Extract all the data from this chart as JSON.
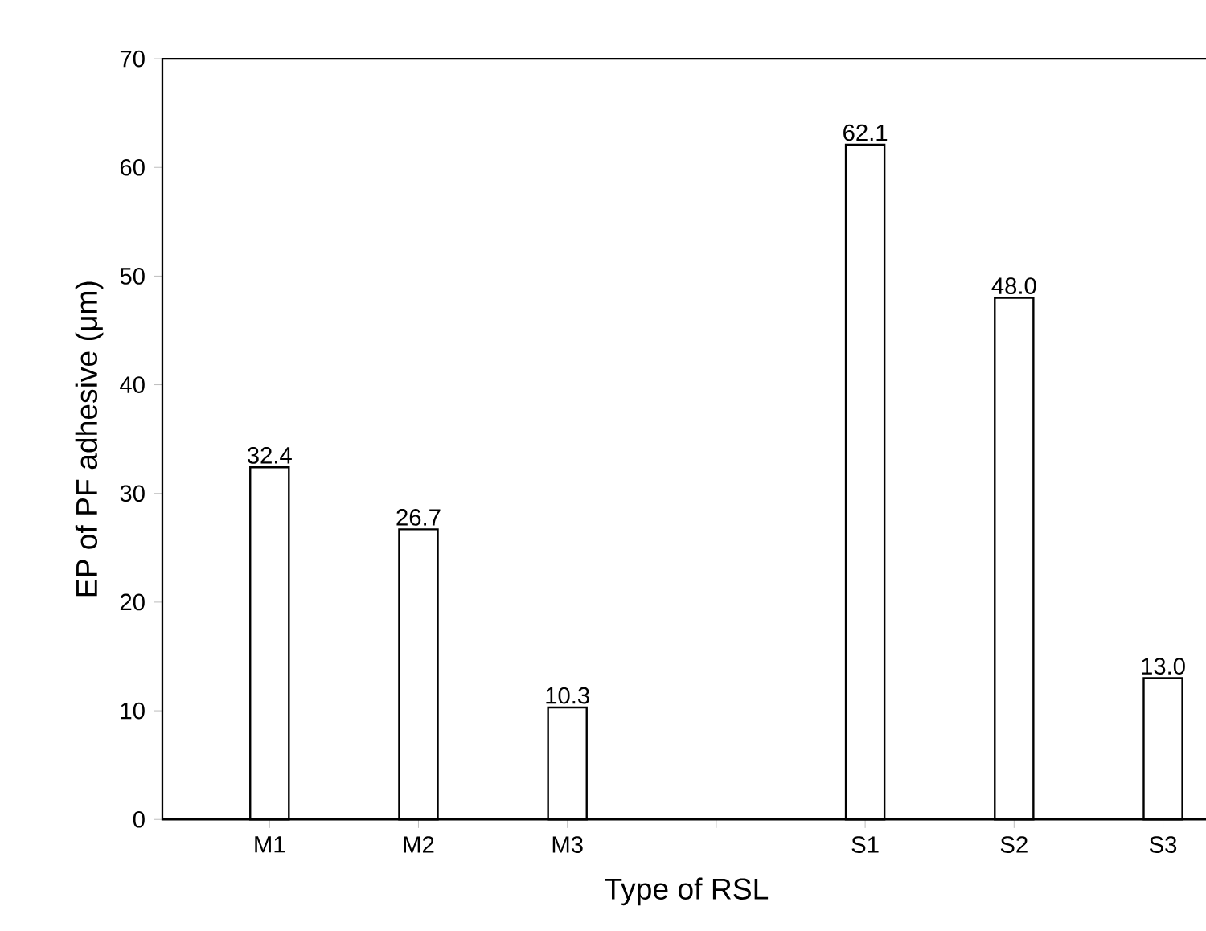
{
  "chart_data": {
    "type": "bar",
    "xlabel": "Type of RSL",
    "ylabel": "EP of PF adhesive (μm)",
    "categories": [
      "M1",
      "M2",
      "M3",
      null,
      "S1",
      "S2",
      "S3"
    ],
    "values": [
      32.4,
      26.7,
      10.3,
      null,
      62.1,
      48.0,
      13.0
    ],
    "value_labels": [
      "32.4",
      "26.7",
      "10.3",
      null,
      "62.1",
      "48.0",
      "13.0"
    ],
    "color": "#ffffff",
    "ylim": [
      0,
      70
    ],
    "yticks": [
      0,
      10,
      20,
      30,
      40,
      50,
      60,
      70
    ],
    "grid": false
  }
}
